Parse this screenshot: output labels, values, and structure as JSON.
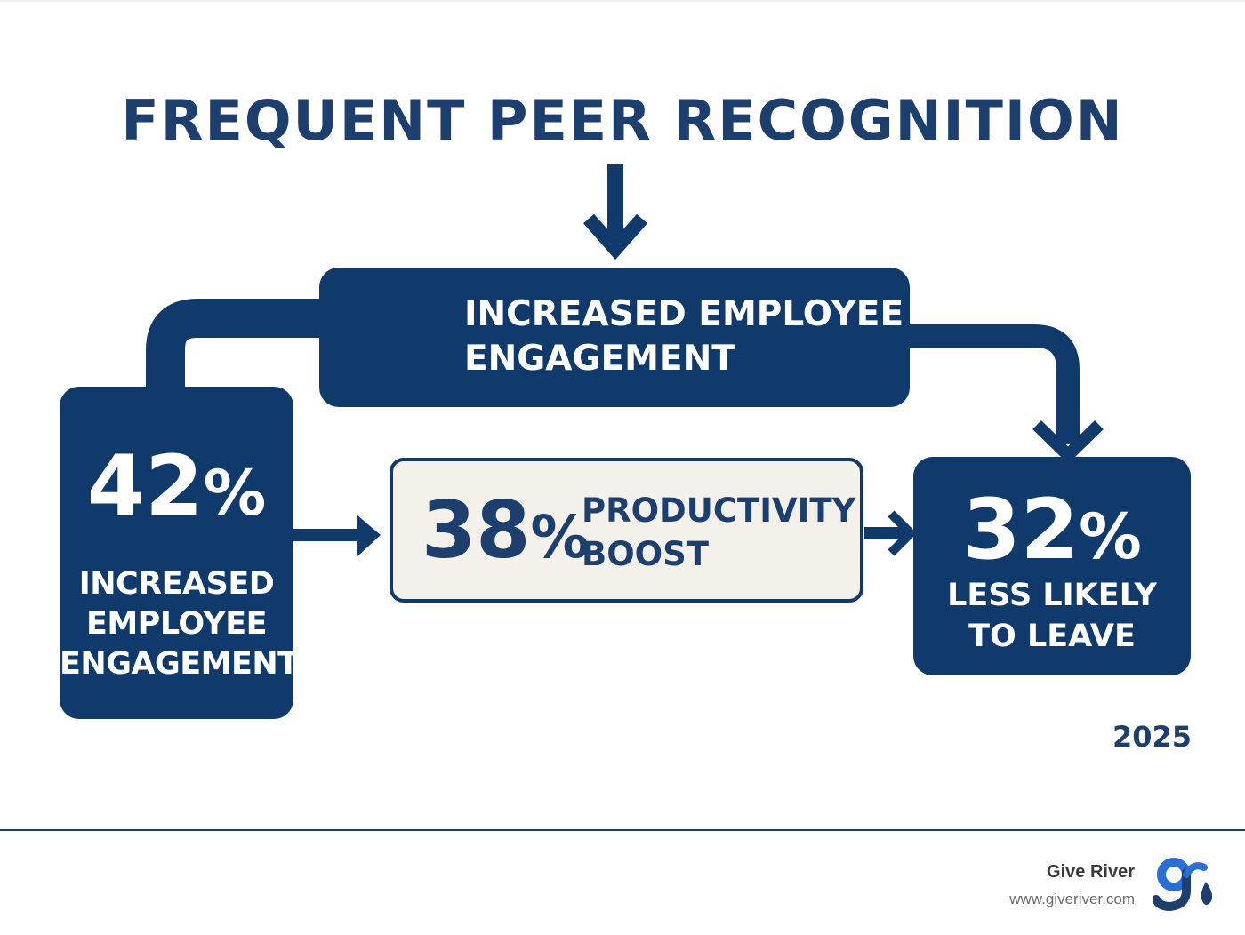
{
  "title": "FREQUENT PEER RECOGNITION",
  "top_box": {
    "line1": "INCREASED EMPLOYEE",
    "line2": "ENGAGEMENT"
  },
  "left_box": {
    "number": "42",
    "percent": "%",
    "line1": "INCREASED",
    "line2": "EMPLOYEE",
    "line3": "ENGAGEMENT"
  },
  "middle_box": {
    "number": "38",
    "percent": "%",
    "line1": "PRODUCTIVITY",
    "line2": "BOOST"
  },
  "right_box": {
    "number": "32",
    "percent": "%",
    "line1": "LESS LIKELY",
    "line2": "TO LEAVE"
  },
  "year": "2025",
  "footer": {
    "brand_name": "Give River",
    "brand_url": "www.giveriver.com",
    "logo_icon": "give-river-logo-icon"
  },
  "colors": {
    "navy": "#0f3a6b",
    "title_navy": "#1d3f6e",
    "cream": "#f3f1ea",
    "logo_blue": "#2a6fd6"
  }
}
